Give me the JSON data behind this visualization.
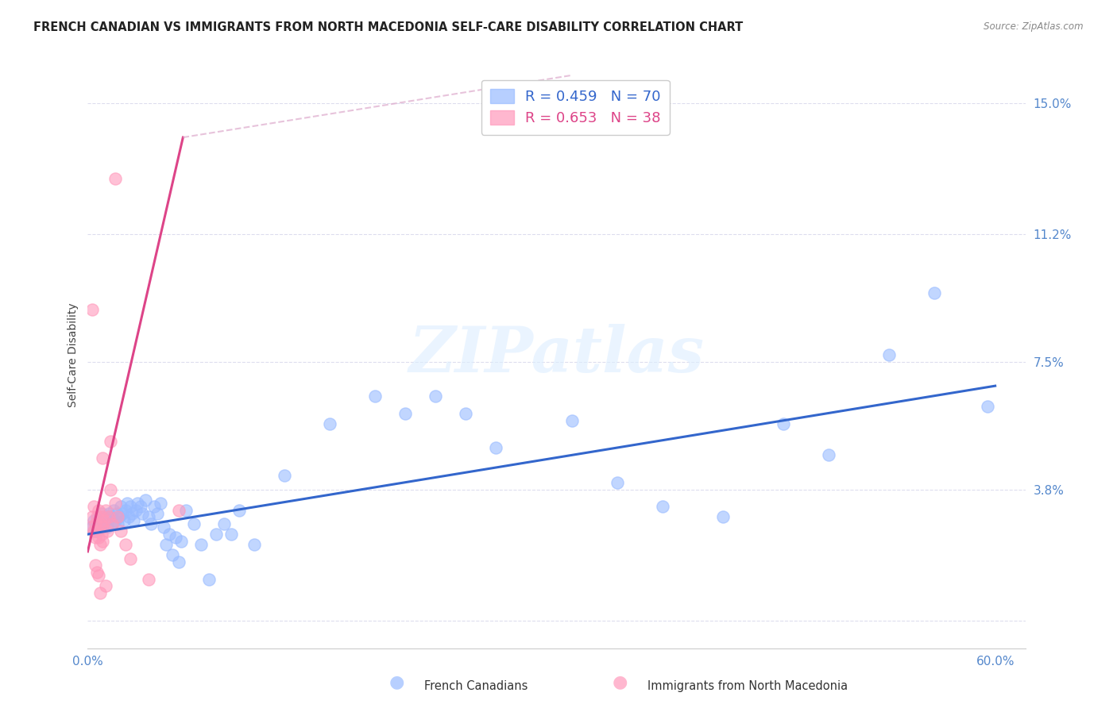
{
  "title": "FRENCH CANADIAN VS IMMIGRANTS FROM NORTH MACEDONIA SELF-CARE DISABILITY CORRELATION CHART",
  "source": "Source: ZipAtlas.com",
  "ylabel": "Self-Care Disability",
  "yticks": [
    0.0,
    0.038,
    0.075,
    0.112,
    0.15
  ],
  "ytick_labels": [
    "",
    "3.8%",
    "7.5%",
    "11.2%",
    "15.0%"
  ],
  "xlim": [
    0.0,
    0.62
  ],
  "ylim": [
    -0.008,
    0.162
  ],
  "legend_r1": "R = 0.459",
  "legend_n1": "N = 70",
  "legend_r2": "R = 0.653",
  "legend_n2": "N = 38",
  "blue_color": "#99BBFF",
  "pink_color": "#FF99BB",
  "blue_line_color": "#3366CC",
  "pink_line_color": "#DD4488",
  "blue_scatter": [
    [
      0.003,
      0.027
    ],
    [
      0.004,
      0.029
    ],
    [
      0.005,
      0.026
    ],
    [
      0.006,
      0.028
    ],
    [
      0.007,
      0.03
    ],
    [
      0.008,
      0.027
    ],
    [
      0.009,
      0.031
    ],
    [
      0.01,
      0.028
    ],
    [
      0.011,
      0.03
    ],
    [
      0.012,
      0.029
    ],
    [
      0.013,
      0.027
    ],
    [
      0.014,
      0.031
    ],
    [
      0.015,
      0.03
    ],
    [
      0.016,
      0.028
    ],
    [
      0.017,
      0.032
    ],
    [
      0.018,
      0.029
    ],
    [
      0.019,
      0.031
    ],
    [
      0.02,
      0.028
    ],
    [
      0.021,
      0.03
    ],
    [
      0.022,
      0.033
    ],
    [
      0.023,
      0.031
    ],
    [
      0.024,
      0.029
    ],
    [
      0.025,
      0.032
    ],
    [
      0.026,
      0.034
    ],
    [
      0.027,
      0.03
    ],
    [
      0.028,
      0.033
    ],
    [
      0.029,
      0.031
    ],
    [
      0.03,
      0.029
    ],
    [
      0.032,
      0.032
    ],
    [
      0.033,
      0.034
    ],
    [
      0.035,
      0.033
    ],
    [
      0.036,
      0.031
    ],
    [
      0.038,
      0.035
    ],
    [
      0.04,
      0.03
    ],
    [
      0.042,
      0.028
    ],
    [
      0.044,
      0.033
    ],
    [
      0.046,
      0.031
    ],
    [
      0.048,
      0.034
    ],
    [
      0.05,
      0.027
    ],
    [
      0.052,
      0.022
    ],
    [
      0.054,
      0.025
    ],
    [
      0.056,
      0.019
    ],
    [
      0.058,
      0.024
    ],
    [
      0.06,
      0.017
    ],
    [
      0.062,
      0.023
    ],
    [
      0.065,
      0.032
    ],
    [
      0.07,
      0.028
    ],
    [
      0.075,
      0.022
    ],
    [
      0.08,
      0.012
    ],
    [
      0.085,
      0.025
    ],
    [
      0.09,
      0.028
    ],
    [
      0.095,
      0.025
    ],
    [
      0.1,
      0.032
    ],
    [
      0.11,
      0.022
    ],
    [
      0.13,
      0.042
    ],
    [
      0.16,
      0.057
    ],
    [
      0.19,
      0.065
    ],
    [
      0.21,
      0.06
    ],
    [
      0.23,
      0.065
    ],
    [
      0.25,
      0.06
    ],
    [
      0.27,
      0.05
    ],
    [
      0.32,
      0.058
    ],
    [
      0.35,
      0.04
    ],
    [
      0.38,
      0.033
    ],
    [
      0.42,
      0.03
    ],
    [
      0.46,
      0.057
    ],
    [
      0.49,
      0.048
    ],
    [
      0.53,
      0.077
    ],
    [
      0.56,
      0.095
    ],
    [
      0.595,
      0.062
    ]
  ],
  "pink_scatter": [
    [
      0.002,
      0.027
    ],
    [
      0.003,
      0.03
    ],
    [
      0.004,
      0.026
    ],
    [
      0.004,
      0.033
    ],
    [
      0.005,
      0.028
    ],
    [
      0.005,
      0.024
    ],
    [
      0.006,
      0.03
    ],
    [
      0.006,
      0.026
    ],
    [
      0.007,
      0.032
    ],
    [
      0.007,
      0.024
    ],
    [
      0.008,
      0.028
    ],
    [
      0.008,
      0.022
    ],
    [
      0.009,
      0.03
    ],
    [
      0.009,
      0.025
    ],
    [
      0.01,
      0.027
    ],
    [
      0.01,
      0.023
    ],
    [
      0.011,
      0.029
    ],
    [
      0.012,
      0.032
    ],
    [
      0.013,
      0.026
    ],
    [
      0.014,
      0.03
    ],
    [
      0.015,
      0.038
    ],
    [
      0.016,
      0.028
    ],
    [
      0.018,
      0.034
    ],
    [
      0.02,
      0.03
    ],
    [
      0.022,
      0.026
    ],
    [
      0.025,
      0.022
    ],
    [
      0.028,
      0.018
    ],
    [
      0.005,
      0.016
    ],
    [
      0.006,
      0.014
    ],
    [
      0.007,
      0.013
    ],
    [
      0.003,
      0.09
    ],
    [
      0.018,
      0.128
    ],
    [
      0.06,
      0.032
    ],
    [
      0.01,
      0.047
    ],
    [
      0.015,
      0.052
    ],
    [
      0.012,
      0.01
    ],
    [
      0.04,
      0.012
    ],
    [
      0.008,
      0.008
    ]
  ],
  "blue_trendline": {
    "x_start": 0.0,
    "x_end": 0.6,
    "y_start": 0.025,
    "y_end": 0.068
  },
  "pink_trendline_solid": {
    "x_start": 0.0,
    "x_end": 0.063,
    "y_start": 0.02,
    "y_end": 0.14
  },
  "pink_trendline_dash": {
    "x_start": 0.0,
    "x_end": 0.32,
    "y_start": 0.02,
    "y_end": 0.158
  },
  "watermark": "ZIPatlas",
  "background_color": "#FFFFFF",
  "grid_color": "#DDDDEE",
  "axis_color": "#5588CC",
  "title_color": "#222222",
  "source_color": "#888888",
  "title_fontsize": 10.5,
  "label_fontsize": 10,
  "tick_fontsize": 11
}
